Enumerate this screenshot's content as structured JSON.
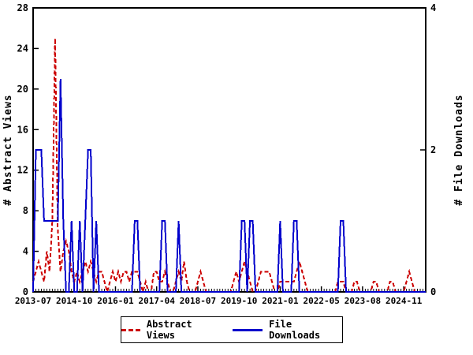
{
  "chart_data": {
    "type": "line",
    "title": "",
    "x_start": "2013-07",
    "x_step_months": 1,
    "n_points": 144,
    "x_tick_labels": [
      "2013-07",
      "2014-10",
      "2016-01",
      "2017-04",
      "2018-07",
      "2019-10",
      "2021-01",
      "2022-05",
      "2023-08",
      "2024-11"
    ],
    "x_minor_ticks": "monthly",
    "grid": false,
    "y_left": {
      "label": "# Abstract Views",
      "min": 0,
      "max": 28,
      "ticks": [
        0,
        4,
        8,
        12,
        16,
        20,
        24,
        28
      ]
    },
    "y_right": {
      "label": "# File Downloads",
      "min": 0,
      "max": 4,
      "ticks": [
        0,
        2,
        4
      ]
    },
    "series": [
      {
        "name": "Abstract Views",
        "axis": "left",
        "color": "#CC0000",
        "style": "dashed",
        "values": [
          1,
          2,
          3,
          2,
          1,
          4,
          2,
          7,
          25,
          6,
          2,
          4,
          5,
          4,
          2,
          1,
          2,
          1,
          2,
          3,
          2,
          3,
          2,
          1,
          2,
          2,
          1,
          0,
          1,
          2,
          1,
          2,
          1,
          2,
          2,
          1,
          2,
          2,
          2,
          1,
          0,
          1,
          0,
          0,
          2,
          2,
          1,
          1,
          2,
          1,
          0,
          0,
          1,
          2,
          1,
          3,
          1,
          0,
          0,
          0,
          1,
          2,
          1,
          0,
          0,
          0,
          0,
          0,
          0,
          0,
          0,
          0,
          0,
          1,
          2,
          1,
          2,
          3,
          2,
          1,
          0,
          0,
          1,
          2,
          2,
          2,
          2,
          1,
          0,
          0,
          1,
          1,
          1,
          1,
          1,
          1,
          2,
          3,
          2,
          1,
          0,
          0,
          0,
          0,
          0,
          0,
          0,
          0,
          0,
          0,
          0,
          1,
          1,
          1,
          0,
          0,
          0,
          1,
          1,
          0,
          0,
          0,
          0,
          0,
          1,
          1,
          0,
          0,
          0,
          0,
          1,
          1,
          0,
          0,
          0,
          0,
          1,
          2,
          1,
          0,
          0,
          0,
          0,
          0
        ]
      },
      {
        "name": "File Downloads",
        "axis": "right",
        "color": "#0000CC",
        "style": "solid",
        "values": [
          0,
          2,
          2,
          2,
          1,
          1,
          1,
          1,
          1,
          1,
          3,
          1,
          0,
          0,
          1,
          0,
          0,
          1,
          0,
          1,
          2,
          2,
          0,
          1,
          0,
          0,
          0,
          0,
          0,
          0,
          0,
          0,
          0,
          0,
          0,
          0,
          0,
          1,
          1,
          0,
          0,
          0,
          0,
          0,
          0,
          0,
          0,
          1,
          1,
          0,
          0,
          0,
          0,
          1,
          0,
          0,
          0,
          0,
          0,
          0,
          0,
          0,
          0,
          0,
          0,
          0,
          0,
          0,
          0,
          0,
          0,
          0,
          0,
          0,
          0,
          0,
          1,
          1,
          0,
          1,
          1,
          0,
          0,
          0,
          0,
          0,
          0,
          0,
          0,
          0,
          1,
          0,
          0,
          0,
          0,
          1,
          1,
          0,
          0,
          0,
          0,
          0,
          0,
          0,
          0,
          0,
          0,
          0,
          0,
          0,
          0,
          0,
          1,
          1,
          0,
          0,
          0,
          0,
          0,
          0,
          0,
          0,
          0,
          0,
          0,
          0,
          0,
          0,
          0,
          0,
          0,
          0,
          0,
          0,
          0,
          0,
          0,
          0,
          0,
          0,
          0,
          0,
          0,
          0
        ]
      }
    ],
    "legend": {
      "position": "bottom-center",
      "entries": [
        "Abstract Views",
        "File Downloads"
      ]
    }
  },
  "colors": {
    "axis": "#000000",
    "background": "#ffffff",
    "abstract_views": "#CC0000",
    "file_downloads": "#0000CC"
  }
}
